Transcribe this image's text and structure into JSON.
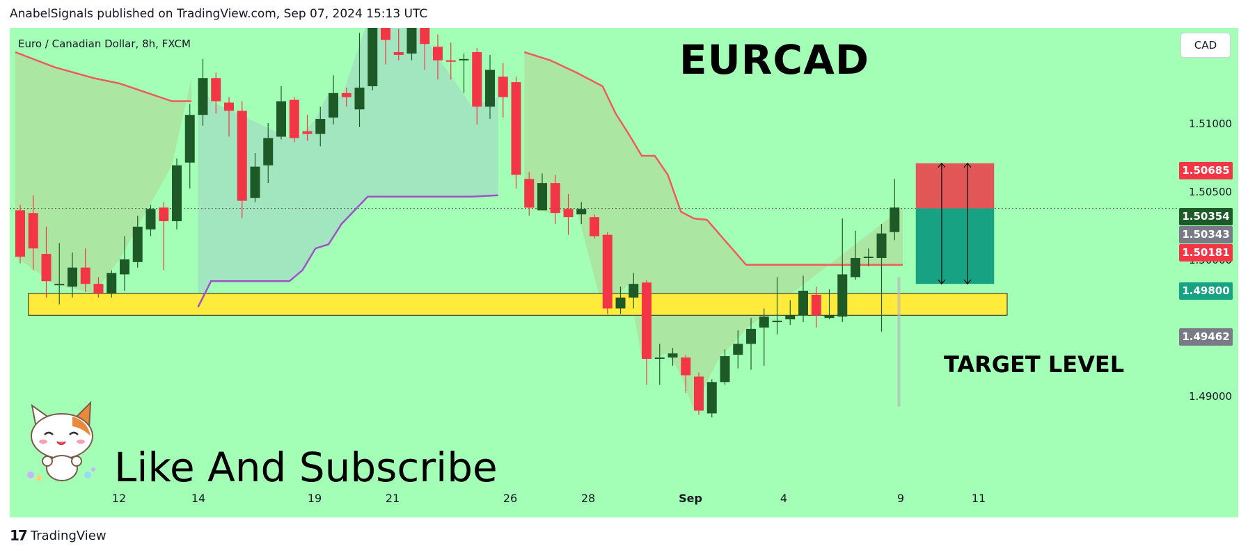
{
  "header": {
    "published_by": "AnabelSignals published on TradingView.com, Sep 07, 2024 15:13 UTC"
  },
  "chart_header": {
    "symbol_line": "Euro / Canadian Dollar, 8h, FXCM",
    "currency_button": "CAD"
  },
  "annotations": {
    "title": "EURCAD",
    "target_label": "TARGET LEVEL",
    "call_to_action": "Like And Subscribe"
  },
  "footer": {
    "brand": "TradingView",
    "logo": "tradingview-logo-icon"
  },
  "colors": {
    "background": "#a3ffb6",
    "bull": "#1e5a28",
    "bear": "#f23645",
    "upper_band": "#f05a5a",
    "lower_band": "#a050c8",
    "target_zone": "#ffeb3b",
    "stop_zone": "#e35658",
    "profit_zone": "#17a284"
  },
  "chart_data": {
    "type": "candlestick",
    "title": "EURCAD",
    "symbol": "Euro / Canadian Dollar",
    "timeframe": "8h",
    "source": "FXCM",
    "ylim": [
      1.4875,
      1.515
    ],
    "y_ticks": [
      "1.51000",
      "1.50500",
      "1.50000",
      "1.49000"
    ],
    "x_ticks": [
      "12",
      "14",
      "19",
      "21",
      "26",
      "28",
      "Sep",
      "4",
      "9",
      "11"
    ],
    "price_tags": [
      {
        "label": "1.50685",
        "color": "#f23645"
      },
      {
        "label": "1.50354",
        "color": "#1e5a28"
      },
      {
        "label": "1.50343",
        "color": "#787b86"
      },
      {
        "label": "1.50181",
        "color": "#f23645"
      },
      {
        "label": "1.49800",
        "color": "#17a284"
      },
      {
        "label": "1.49462",
        "color": "#787b86"
      }
    ],
    "candles": [
      [
        1.5034,
        1.5,
        1.5038,
        1.4995
      ],
      [
        1.5032,
        1.5006,
        1.5045,
        1.499
      ],
      [
        1.5002,
        1.4982,
        1.5022,
        1.497
      ],
      [
        1.498,
        1.498,
        1.501,
        1.4965
      ],
      [
        1.4978,
        1.4992,
        1.5003,
        1.497
      ],
      [
        1.4992,
        1.498,
        1.5006,
        1.4974
      ],
      [
        1.498,
        1.4973,
        1.4985,
        1.497
      ],
      [
        1.4973,
        1.4988,
        1.499,
        1.497
      ],
      [
        1.4987,
        1.4998,
        1.5015,
        1.4975
      ],
      [
        1.4996,
        1.5022,
        1.503,
        1.4992
      ],
      [
        1.502,
        1.5035,
        1.5038,
        1.5015
      ],
      [
        1.5036,
        1.5026,
        1.504,
        1.499
      ],
      [
        1.5026,
        1.5067,
        1.5072,
        1.502
      ],
      [
        1.5069,
        1.5104,
        1.5112,
        1.505
      ],
      [
        1.5104,
        1.5131,
        1.5145,
        1.5096
      ],
      [
        1.5131,
        1.5114,
        1.5135,
        1.5105
      ],
      [
        1.5113,
        1.5107,
        1.5117,
        1.5088
      ],
      [
        1.5107,
        1.5041,
        1.5114,
        1.5028
      ],
      [
        1.5043,
        1.5066,
        1.5076,
        1.504
      ],
      [
        1.5067,
        1.5087,
        1.5098,
        1.5054
      ],
      [
        1.5088,
        1.5114,
        1.5125,
        1.5086
      ],
      [
        1.5115,
        1.5087,
        1.5117,
        1.5084
      ],
      [
        1.5092,
        1.509,
        1.5104,
        1.5085
      ],
      [
        1.509,
        1.5101,
        1.511,
        1.5081
      ],
      [
        1.5102,
        1.512,
        1.5133,
        1.5097
      ],
      [
        1.512,
        1.5117,
        1.5124,
        1.511
      ],
      [
        1.5108,
        1.5124,
        1.5164,
        1.5095
      ],
      [
        1.5125,
        1.5173,
        1.5182,
        1.5122
      ],
      [
        1.5182,
        1.5159,
        1.5184,
        1.5141
      ],
      [
        1.515,
        1.5148,
        1.5167,
        1.5144
      ],
      [
        1.5149,
        1.518,
        1.5196,
        1.5144
      ],
      [
        1.5183,
        1.5156,
        1.5186,
        1.5137
      ],
      [
        1.5154,
        1.5144,
        1.5163,
        1.513
      ],
      [
        1.5144,
        1.5143,
        1.5157,
        1.513
      ],
      [
        1.5145,
        1.5145,
        1.5149,
        1.512
      ],
      [
        1.515,
        1.511,
        1.5153,
        1.5097
      ],
      [
        1.511,
        1.5137,
        1.5148,
        1.5101
      ],
      [
        1.5132,
        1.5117,
        1.5142,
        1.5102
      ],
      [
        1.5128,
        1.506,
        1.5132,
        1.505
      ],
      [
        1.5057,
        1.5036,
        1.5062,
        1.503
      ],
      [
        1.5034,
        1.5054,
        1.5061,
        1.5034
      ],
      [
        1.5054,
        1.5032,
        1.506,
        1.5024
      ],
      [
        1.5035,
        1.5029,
        1.5046,
        1.5016
      ],
      [
        1.5031,
        1.5035,
        1.504,
        1.5024
      ],
      [
        1.5029,
        1.5015,
        1.5031,
        1.5013
      ],
      [
        1.5016,
        1.4962,
        1.5018,
        1.4958
      ],
      [
        1.4962,
        1.497,
        1.4978,
        1.4958
      ],
      [
        1.497,
        1.498,
        1.4988,
        1.4962
      ],
      [
        1.4981,
        1.4925,
        1.4983,
        1.4906
      ],
      [
        1.4925,
        1.4926,
        1.4936,
        1.4906
      ],
      [
        1.4926,
        1.4929,
        1.4933,
        1.492
      ],
      [
        1.4926,
        1.4913,
        1.4928,
        1.49
      ],
      [
        1.4912,
        1.4887,
        1.4915,
        1.4884
      ],
      [
        1.4885,
        1.4908,
        1.491,
        1.4882
      ],
      [
        1.4908,
        1.4927,
        1.4932,
        1.4906
      ],
      [
        1.4928,
        1.4936,
        1.4946,
        1.4918
      ],
      [
        1.4936,
        1.4947,
        1.4955,
        1.4917
      ],
      [
        1.4948,
        1.4956,
        1.4962,
        1.492
      ],
      [
        1.4953,
        1.4953,
        1.4985,
        1.4943
      ],
      [
        1.4954,
        1.4957,
        1.4968,
        1.495
      ],
      [
        1.4957,
        1.4975,
        1.4986,
        1.4952
      ],
      [
        1.4972,
        1.4957,
        1.4978,
        1.4948
      ],
      [
        1.4955,
        1.4957,
        1.4976,
        1.4954
      ],
      [
        1.4956,
        1.4987,
        1.5028,
        1.4952
      ],
      [
        1.4985,
        1.4999,
        1.5019,
        1.4983
      ],
      [
        1.5,
        1.5,
        1.5006,
        1.4993
      ],
      [
        1.4999,
        1.5017,
        1.5024,
        1.4945
      ],
      [
        1.5018,
        1.5036,
        1.5057,
        1.5012
      ]
    ],
    "upper_band": [
      [
        0,
        1.515
      ],
      [
        3,
        1.5139
      ],
      [
        6,
        1.5131
      ],
      [
        8,
        1.5127
      ],
      [
        12,
        1.5114
      ],
      [
        13.5,
        1.5114
      ],
      [
        13.5,
        null
      ],
      [
        39,
        null
      ],
      [
        39,
        1.515
      ],
      [
        41,
        1.5144
      ],
      [
        43,
        1.5135
      ],
      [
        45,
        1.5125
      ],
      [
        46,
        1.5105
      ],
      [
        47,
        1.509
      ],
      [
        48,
        1.5074
      ],
      [
        49,
        1.5074
      ],
      [
        50,
        1.506
      ],
      [
        51,
        1.5033
      ],
      [
        52,
        1.5028
      ],
      [
        53,
        1.5027
      ],
      [
        54,
        1.5016
      ],
      [
        55,
        1.5005
      ],
      [
        56,
        1.4994
      ],
      [
        68,
        1.4994
      ]
    ],
    "lower_band": [
      [
        14,
        1.4963
      ],
      [
        15,
        1.4982
      ],
      [
        21,
        1.4982
      ],
      [
        22,
        1.499
      ],
      [
        23,
        1.5006
      ],
      [
        24,
        1.5009
      ],
      [
        25,
        1.5024
      ],
      [
        27,
        1.5044
      ],
      [
        30,
        1.5044
      ],
      [
        35,
        1.5044
      ],
      [
        37,
        1.5045
      ]
    ],
    "target_zone": {
      "from_index": 1,
      "to_index": 76,
      "top": 1.4973,
      "bottom": 1.4957
    },
    "position": {
      "from_index": 69,
      "to_index": 75,
      "entry": 1.50354,
      "stop": 1.50685,
      "target": 1.498
    }
  }
}
